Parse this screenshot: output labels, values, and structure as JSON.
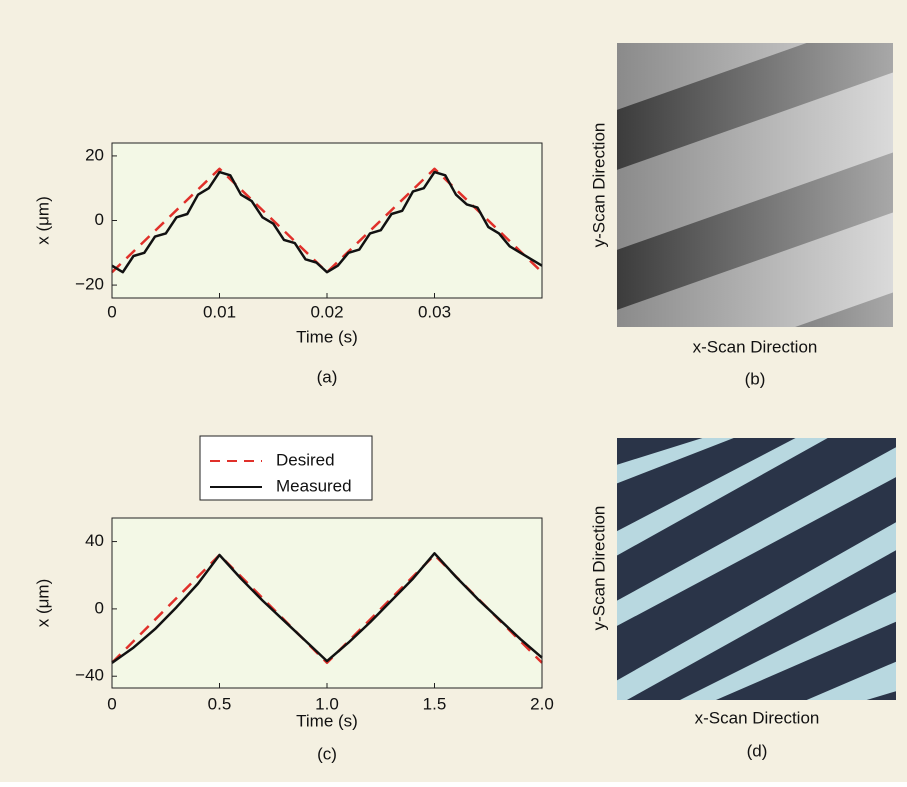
{
  "chart_data": [
    {
      "type": "line",
      "xlabel": "Time (s)",
      "ylabel": "x (μm)",
      "caption": "(a)",
      "xlim": [
        0,
        0.04
      ],
      "xticks": [
        0,
        0.01,
        0.02,
        0.03
      ],
      "ylim": [
        -24,
        24
      ],
      "yticks": [
        {
          "value": -20,
          "label": "−20"
        },
        0,
        20
      ],
      "background": "#f3f8e6",
      "series": [
        {
          "color": "#e0302a",
          "style": "dashed",
          "x": [
            0,
            0.01,
            0.02,
            0.03,
            0.04
          ],
          "values": [
            -16,
            16,
            -16,
            16,
            -16
          ]
        },
        {
          "color": "#111111",
          "style": "solid",
          "x": [
            0,
            0.001,
            0.002,
            0.003,
            0.004,
            0.005,
            0.006,
            0.007,
            0.008,
            0.009,
            0.01,
            0.011,
            0.012,
            0.013,
            0.014,
            0.015,
            0.016,
            0.017,
            0.018,
            0.019,
            0.02,
            0.021,
            0.022,
            0.023,
            0.024,
            0.025,
            0.026,
            0.027,
            0.028,
            0.029,
            0.03,
            0.031,
            0.032,
            0.033,
            0.034,
            0.035,
            0.036,
            0.037,
            0.038,
            0.039,
            0.04
          ],
          "values": [
            -14,
            -16,
            -11,
            -10,
            -5,
            -4,
            1,
            2,
            8,
            10,
            15,
            14,
            8,
            6,
            1,
            -1,
            -6,
            -7,
            -12,
            -13,
            -16,
            -14,
            -10,
            -9,
            -4,
            -3,
            2,
            3,
            9,
            10,
            15,
            14,
            8,
            5,
            4,
            -2,
            -4,
            -8,
            -10,
            -12,
            -14
          ]
        }
      ]
    },
    {
      "type": "line",
      "xlabel": "Time (s)",
      "ylabel": "x (μm)",
      "caption": "(c)",
      "xlim": [
        0,
        2
      ],
      "xticks": [
        0,
        0.5,
        {
          "value": 1,
          "label": "1.0"
        },
        1.5,
        {
          "value": 2,
          "label": "2.0"
        }
      ],
      "ylim": [
        -47,
        54
      ],
      "yticks": [
        {
          "value": -40,
          "label": "−40"
        },
        0,
        40
      ],
      "background": "#f3f8e6",
      "series": [
        {
          "name": "Desired",
          "color": "#e0302a",
          "style": "dashed",
          "x": [
            0,
            0.5,
            1,
            1.5,
            2
          ],
          "values": [
            -32,
            32,
            -32,
            32,
            -32
          ]
        },
        {
          "name": "Measured",
          "color": "#111111",
          "style": "solid",
          "x": [
            0,
            0.1,
            0.2,
            0.3,
            0.4,
            0.5,
            0.6,
            0.7,
            0.8,
            0.9,
            1,
            1.1,
            1.2,
            1.3,
            1.4,
            1.5,
            1.6,
            1.7,
            1.8,
            1.9,
            2
          ],
          "values": [
            -32,
            -23,
            -12,
            1,
            15,
            32,
            18,
            5,
            -7,
            -19,
            -31,
            -20,
            -8,
            5,
            18,
            33,
            19,
            6,
            -6,
            -18,
            -29
          ]
        }
      ]
    }
  ],
  "images": [
    {
      "xlabel": "x-Scan Direction",
      "ylabel": "y-Scan Direction",
      "caption": "(b)"
    },
    {
      "xlabel": "x-Scan Direction",
      "ylabel": "y-Scan Direction",
      "caption": "(d)"
    }
  ]
}
